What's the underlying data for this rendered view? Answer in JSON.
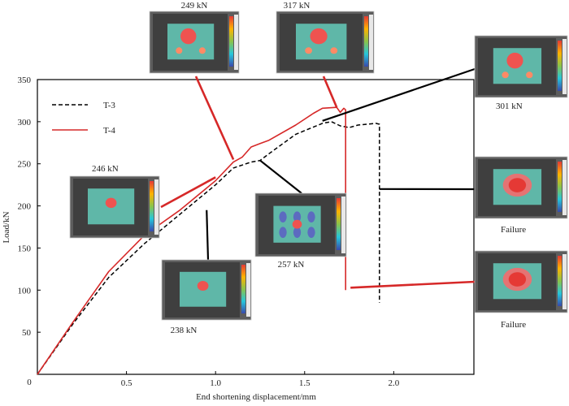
{
  "chart_data": {
    "type": "line",
    "xlabel": "End shortening displacement/mm",
    "ylabel": "Load/kN",
    "xlim": [
      0,
      2.45
    ],
    "ylim": [
      0,
      350
    ],
    "x_ticks": [
      0.5,
      1.0,
      1.5,
      2.0
    ],
    "x_tick_labels": [
      "0.5",
      "1.0",
      "1.5",
      "2.0"
    ],
    "y_ticks": [
      50,
      100,
      150,
      200,
      250,
      300,
      350
    ],
    "y_tick_labels": [
      "50",
      "100",
      "150",
      "200",
      "250",
      "300",
      "350"
    ],
    "origin_label": "0",
    "grid": false,
    "legend_position": "top-left",
    "series": [
      {
        "name": "T-3",
        "style": "dashed",
        "color": "#000000",
        "x": [
          0,
          0.2,
          0.4,
          0.6,
          0.8,
          1.0,
          1.1,
          1.2,
          1.25,
          1.3,
          1.45,
          1.6,
          1.65,
          1.7,
          1.75,
          1.8,
          1.9,
          1.92,
          1.92
        ],
        "y": [
          0,
          60,
          115,
          155,
          190,
          225,
          245,
          252,
          254,
          262,
          285,
          298,
          300,
          295,
          293,
          296,
          298,
          297,
          85
        ]
      },
      {
        "name": "T-4",
        "style": "solid",
        "color": "#d62828",
        "x": [
          0,
          0.2,
          0.4,
          0.6,
          0.8,
          1.0,
          1.1,
          1.15,
          1.2,
          1.25,
          1.3,
          1.45,
          1.55,
          1.6,
          1.68,
          1.7,
          1.72,
          1.73,
          1.73
        ],
        "y": [
          0,
          62,
          122,
          165,
          195,
          230,
          252,
          258,
          270,
          274,
          278,
          296,
          310,
          316,
          317,
          311,
          316,
          314,
          100
        ]
      }
    ],
    "annotations": [
      {
        "label": "249 kN",
        "series": "T-4",
        "x": 1.1,
        "y": 255,
        "state": "contour",
        "spots": 3
      },
      {
        "label": "317 kN",
        "series": "T-4",
        "x": 1.68,
        "y": 317,
        "state": "contour",
        "spots": 3
      },
      {
        "label": "301 kN",
        "series": "T-3",
        "x": 1.6,
        "y": 301,
        "state": "contour",
        "spots": 3
      },
      {
        "label": "246 kN",
        "series": "T-4",
        "x": 1.0,
        "y": 234,
        "state": "contour",
        "spots": 1
      },
      {
        "label": "Failure",
        "series": "T-3",
        "x": 1.92,
        "y": 220,
        "state": "failure",
        "spots": 1
      },
      {
        "label": "257 kN",
        "series": "T-3",
        "x": 1.25,
        "y": 254,
        "state": "contour",
        "spots": 6
      },
      {
        "label": "238 kN",
        "series": "T-3",
        "x": 0.95,
        "y": 195,
        "state": "contour",
        "spots": 1
      },
      {
        "label": "Failure",
        "series": "T-4",
        "x": 1.73,
        "y": 100,
        "state": "failure",
        "spots": 1
      }
    ]
  }
}
